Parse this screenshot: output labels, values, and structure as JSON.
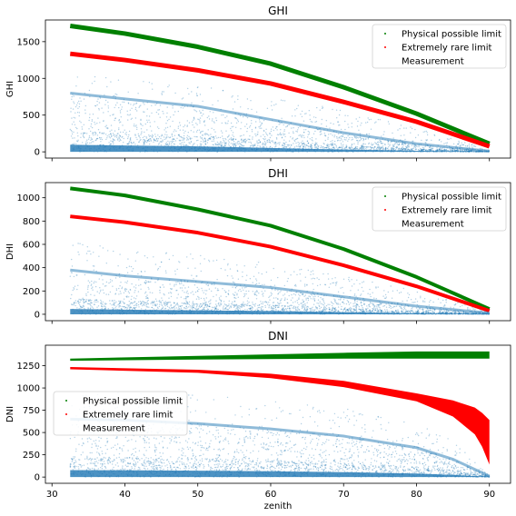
{
  "chart_data": [
    {
      "type": "scatter",
      "title": "GHI",
      "ylabel": "GHI",
      "xlabel": "",
      "xlim": [
        29.1,
        92.9
      ],
      "ylim": [
        -85,
        1795
      ],
      "xticks": [
        30,
        40,
        50,
        60,
        70,
        80,
        90
      ],
      "yticks": [
        0,
        500,
        1000,
        1500
      ],
      "show_xtick_labels": false,
      "legend_placement": "top-right",
      "series": [
        {
          "name": "Physical possible limit",
          "color": "#008000",
          "x": [
            32.5,
            40,
            50,
            60,
            70,
            80,
            90
          ],
          "y": [
            1715,
            1610,
            1430,
            1200,
            880,
            520,
            110
          ],
          "band": 14
        },
        {
          "name": "Extremely rare limit",
          "color": "#ff0000",
          "x": [
            32.5,
            40,
            50,
            60,
            70,
            80,
            90
          ],
          "y": [
            1335,
            1250,
            1110,
            930,
            680,
            410,
            75
          ],
          "band": 12
        },
        {
          "name": "Measurement",
          "color": "#1f77b4",
          "x": [
            32.5,
            40,
            50,
            60,
            70,
            80,
            90
          ],
          "y_upper": [
            1050,
            990,
            900,
            760,
            560,
            320,
            30
          ],
          "y_dense": [
            800,
            720,
            620,
            440,
            260,
            110,
            10
          ]
        }
      ]
    },
    {
      "type": "scatter",
      "title": "DHI",
      "ylabel": "DHI",
      "xlabel": "",
      "xlim": [
        29.1,
        92.9
      ],
      "ylim": [
        -55,
        1130
      ],
      "xticks": [
        30,
        40,
        50,
        60,
        70,
        80,
        90
      ],
      "yticks": [
        0,
        200,
        400,
        600,
        800,
        1000
      ],
      "show_xtick_labels": false,
      "legend_placement": "top-right",
      "series": [
        {
          "name": "Physical possible limit",
          "color": "#008000",
          "x": [
            32.5,
            40,
            50,
            60,
            70,
            80,
            90
          ],
          "y": [
            1080,
            1020,
            900,
            760,
            560,
            320,
            45
          ],
          "band": 12
        },
        {
          "name": "Extremely rare limit",
          "color": "#ff0000",
          "x": [
            32.5,
            40,
            50,
            60,
            70,
            80,
            90
          ],
          "y": [
            840,
            790,
            700,
            580,
            420,
            240,
            30
          ],
          "band": 10
        },
        {
          "name": "Measurement",
          "color": "#1f77b4",
          "x": [
            32.5,
            40,
            50,
            60,
            70,
            80,
            90
          ],
          "y_upper": [
            620,
            560,
            520,
            440,
            330,
            200,
            20
          ],
          "y_dense": [
            380,
            330,
            280,
            230,
            150,
            70,
            10
          ]
        }
      ]
    },
    {
      "type": "scatter",
      "title": "DNI",
      "ylabel": "DNI",
      "xlabel": "zenith",
      "xlim": [
        29.1,
        92.9
      ],
      "ylim": [
        -70,
        1480
      ],
      "xticks": [
        30,
        40,
        50,
        60,
        70,
        80,
        90
      ],
      "yticks": [
        0,
        250,
        500,
        750,
        1000,
        1250
      ],
      "show_xtick_labels": true,
      "legend_placement": "center-left",
      "series": [
        {
          "name": "Physical possible limit",
          "color": "#008000",
          "x": [
            32.5,
            50,
            70,
            80,
            90
          ],
          "y_low": [
            1305,
            1320,
            1330,
            1330,
            1330
          ],
          "y_high": [
            1330,
            1360,
            1395,
            1410,
            1410
          ]
        },
        {
          "name": "Extremely rare limit",
          "color": "#ff0000",
          "x": [
            32.5,
            50,
            60,
            70,
            80,
            85,
            88,
            89,
            90
          ],
          "y_low": [
            1210,
            1170,
            1110,
            1010,
            850,
            680,
            480,
            340,
            140
          ],
          "y_high": [
            1235,
            1205,
            1160,
            1080,
            940,
            860,
            780,
            720,
            640
          ]
        },
        {
          "name": "Measurement",
          "color": "#1f77b4",
          "x": [
            32.5,
            40,
            50,
            60,
            70,
            80,
            85,
            90
          ],
          "y_upper": [
            930,
            950,
            920,
            870,
            780,
            600,
            420,
            20
          ],
          "y_dense": [
            650,
            640,
            600,
            540,
            460,
            330,
            200,
            10
          ]
        }
      ]
    }
  ]
}
